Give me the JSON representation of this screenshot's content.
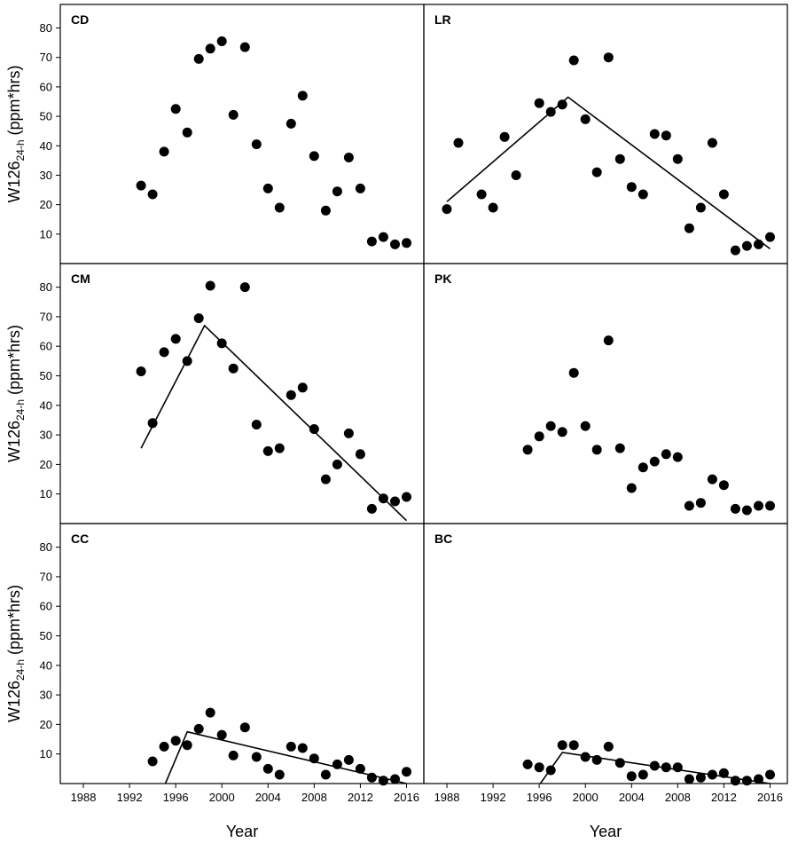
{
  "chart_data": {
    "type": "scatter",
    "xlabel": "Year",
    "ylabel_main": "W126",
    "ylabel_sub": "24-h",
    "ylabel_unit": " (ppm*hrs)",
    "xlim": [
      1986,
      2017.5
    ],
    "ylim": [
      0,
      88
    ],
    "xticks": [
      1988,
      1992,
      1996,
      2000,
      2004,
      2008,
      2012,
      2016
    ],
    "yticks": [
      10,
      20,
      30,
      40,
      50,
      60,
      70,
      80
    ],
    "grid": false,
    "panels": [
      {
        "label": "CD",
        "points": [
          [
            1993,
            26.5
          ],
          [
            1994,
            23.5
          ],
          [
            1995,
            38
          ],
          [
            1996,
            52.5
          ],
          [
            1997,
            44.5
          ],
          [
            1998,
            69.5
          ],
          [
            1999,
            73
          ],
          [
            2000,
            75.5
          ],
          [
            2001,
            50.5
          ],
          [
            2002,
            73.5
          ],
          [
            2003,
            40.5
          ],
          [
            2004,
            25.5
          ],
          [
            2005,
            19
          ],
          [
            2006,
            47.5
          ],
          [
            2007,
            57
          ],
          [
            2008,
            36.5
          ],
          [
            2009,
            18
          ],
          [
            2010,
            24.5
          ],
          [
            2011,
            36
          ],
          [
            2012,
            25.5
          ],
          [
            2013,
            7.5
          ],
          [
            2014,
            9
          ],
          [
            2015,
            6.5
          ],
          [
            2016,
            7
          ]
        ],
        "trend": []
      },
      {
        "label": "LR",
        "points": [
          [
            1988,
            18.5
          ],
          [
            1989,
            41
          ],
          [
            1991,
            23.5
          ],
          [
            1992,
            19
          ],
          [
            1993,
            43
          ],
          [
            1994,
            30
          ],
          [
            1996,
            54.5
          ],
          [
            1997,
            51.5
          ],
          [
            1998,
            54
          ],
          [
            1999,
            69
          ],
          [
            2000,
            49
          ],
          [
            2001,
            31
          ],
          [
            2002,
            70
          ],
          [
            2003,
            35.5
          ],
          [
            2004,
            26
          ],
          [
            2005,
            23.5
          ],
          [
            2006,
            44
          ],
          [
            2007,
            43.5
          ],
          [
            2008,
            35.5
          ],
          [
            2009,
            12
          ],
          [
            2010,
            19
          ],
          [
            2011,
            41
          ],
          [
            2012,
            23.5
          ],
          [
            2013,
            4.5
          ],
          [
            2014,
            6
          ],
          [
            2015,
            6.5
          ],
          [
            2016,
            9
          ]
        ],
        "trend": [
          [
            1988,
            21
          ],
          [
            1998.5,
            56.5
          ],
          [
            2016,
            5
          ]
        ]
      },
      {
        "label": "CM",
        "points": [
          [
            1993,
            51.5
          ],
          [
            1994,
            34
          ],
          [
            1995,
            58
          ],
          [
            1996,
            62.5
          ],
          [
            1997,
            55
          ],
          [
            1998,
            69.5
          ],
          [
            1999,
            80.5
          ],
          [
            2000,
            61
          ],
          [
            2001,
            52.5
          ],
          [
            2002,
            80
          ],
          [
            2003,
            33.5
          ],
          [
            2004,
            24.5
          ],
          [
            2005,
            25.5
          ],
          [
            2006,
            43.5
          ],
          [
            2007,
            46
          ],
          [
            2008,
            32
          ],
          [
            2009,
            15
          ],
          [
            2010,
            20
          ],
          [
            2011,
            30.5
          ],
          [
            2012,
            23.5
          ],
          [
            2013,
            5
          ],
          [
            2014,
            8.5
          ],
          [
            2015,
            7.5
          ],
          [
            2016,
            9
          ]
        ],
        "trend": [
          [
            1993,
            25.5
          ],
          [
            1998.5,
            67
          ],
          [
            2016,
            1
          ]
        ]
      },
      {
        "label": "PK",
        "points": [
          [
            1995,
            25
          ],
          [
            1996,
            29.5
          ],
          [
            1997,
            33
          ],
          [
            1998,
            31
          ],
          [
            1999,
            51
          ],
          [
            2000,
            33
          ],
          [
            2001,
            25
          ],
          [
            2002,
            62
          ],
          [
            2003,
            25.5
          ],
          [
            2004,
            12
          ],
          [
            2005,
            19
          ],
          [
            2006,
            21
          ],
          [
            2007,
            23.5
          ],
          [
            2008,
            22.5
          ],
          [
            2009,
            6
          ],
          [
            2010,
            7
          ],
          [
            2011,
            15
          ],
          [
            2012,
            13
          ],
          [
            2013,
            5
          ],
          [
            2014,
            4.5
          ],
          [
            2015,
            6
          ],
          [
            2016,
            6
          ]
        ],
        "trend": []
      },
      {
        "label": "CC",
        "points": [
          [
            1994,
            7.5
          ],
          [
            1995,
            12.5
          ],
          [
            1996,
            14.5
          ],
          [
            1997,
            13
          ],
          [
            1998,
            18.5
          ],
          [
            1999,
            24
          ],
          [
            2000,
            16.5
          ],
          [
            2001,
            9.5
          ],
          [
            2002,
            19
          ],
          [
            2003,
            9
          ],
          [
            2004,
            5
          ],
          [
            2005,
            3
          ],
          [
            2006,
            12.5
          ],
          [
            2007,
            12
          ],
          [
            2008,
            8.5
          ],
          [
            2009,
            3
          ],
          [
            2010,
            6.5
          ],
          [
            2011,
            8
          ],
          [
            2012,
            5
          ],
          [
            2013,
            2
          ],
          [
            2014,
            1
          ],
          [
            2015,
            1.5
          ],
          [
            2016,
            4
          ]
        ],
        "trend": [
          [
            1995,
            -1
          ],
          [
            1997,
            17.5
          ],
          [
            2016,
            0
          ]
        ]
      },
      {
        "label": "BC",
        "points": [
          [
            1995,
            6.5
          ],
          [
            1996,
            5.5
          ],
          [
            1997,
            4.5
          ],
          [
            1998,
            13
          ],
          [
            1999,
            13
          ],
          [
            2000,
            9
          ],
          [
            2001,
            8
          ],
          [
            2002,
            12.5
          ],
          [
            2003,
            7
          ],
          [
            2004,
            2.5
          ],
          [
            2005,
            3
          ],
          [
            2006,
            6
          ],
          [
            2007,
            5.5
          ],
          [
            2008,
            5.5
          ],
          [
            2009,
            1.5
          ],
          [
            2010,
            2
          ],
          [
            2011,
            3
          ],
          [
            2012,
            3.5
          ],
          [
            2013,
            1
          ],
          [
            2014,
            1
          ],
          [
            2015,
            1.5
          ],
          [
            2016,
            3
          ]
        ],
        "trend": [
          [
            1996,
            -0.5
          ],
          [
            1998,
            10.5
          ],
          [
            2016,
            0
          ]
        ]
      }
    ]
  }
}
